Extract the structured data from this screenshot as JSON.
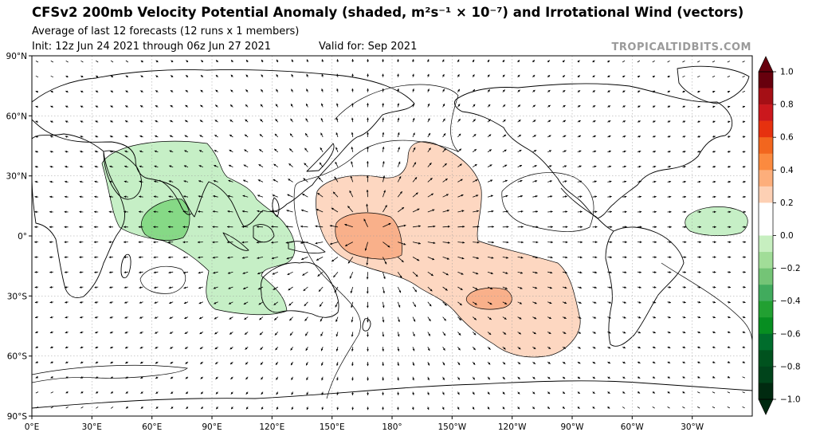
{
  "header": {
    "title": "CFSv2 200mb Velocity Potential Anomaly (shaded, m²s⁻¹ × 10⁻⁷) and Irrotational Wind (vectors)",
    "subtitle": "Average of last 12 forecasts (12 runs x 1 members)",
    "init": "Init: 12z Jun 24 2021 through 06z Jun 27 2021",
    "valid": "Valid for: Sep 2021",
    "credit": "TROPICALTIDBITS.COM"
  },
  "map": {
    "projection": "equirectangular",
    "lon_range": [
      0,
      360
    ],
    "lat_range": [
      -90,
      90
    ],
    "gridlines": true,
    "lon_ticks": [
      "0°E",
      "30°E",
      "60°E",
      "90°E",
      "120°E",
      "150°E",
      "180°",
      "150°W",
      "120°W",
      "90°W",
      "60°W",
      "30°W"
    ],
    "lat_ticks": [
      "90°N",
      "60°N",
      "30°N",
      "0°",
      "30°S",
      "60°S",
      "90°S"
    ],
    "colors": {
      "land_outline": "#000000",
      "ocean": "#ffffff",
      "grid": "#999999"
    },
    "anomaly_regions": [
      {
        "sign": "negative",
        "level": -0.2,
        "color": "#c6efc6",
        "region": "Africa / Indian Ocean / Maritime Continent"
      },
      {
        "sign": "negative",
        "level": -0.3,
        "color": "#86d986",
        "region": "central Indian Ocean"
      },
      {
        "sign": "negative",
        "level": -0.2,
        "color": "#c6efc6",
        "region": "tropical South Atlantic / Brazil"
      },
      {
        "sign": "positive",
        "level": 0.2,
        "color": "#fdd7c1",
        "region": "central Pacific"
      },
      {
        "sign": "positive",
        "level": 0.3,
        "color": "#f9b08a",
        "region": "west-central Pacific near equator"
      },
      {
        "sign": "positive",
        "level": 0.3,
        "color": "#f9b08a",
        "region": "South Pacific near 30°S 125°W"
      }
    ]
  },
  "colorbar": {
    "ticks": [
      "1.0",
      "0.8",
      "0.6",
      "0.4",
      "0.2",
      "0.0",
      "−0.2",
      "−0.4",
      "−0.6",
      "−0.8",
      "−1.0"
    ],
    "colors": [
      "#67000d",
      "#a50f15",
      "#cb181d",
      "#e6310f",
      "#f2661e",
      "#fb8a3f",
      "#fdae7b",
      "#fdd0b4",
      "#ffffff",
      "#ffffff",
      "#c7efc0",
      "#a1dd98",
      "#74c476",
      "#41ab5d",
      "#22a032",
      "#078e21",
      "#006d2c",
      "#00521e",
      "#00441b",
      "#002a10"
    ],
    "extend": "both"
  }
}
